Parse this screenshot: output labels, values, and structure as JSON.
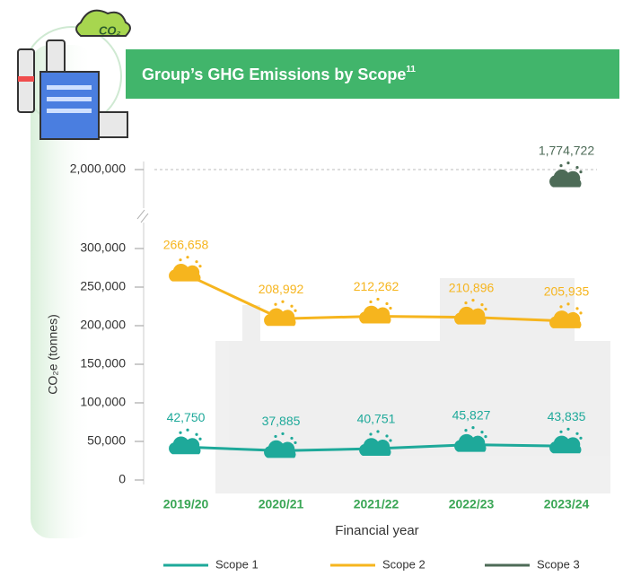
{
  "chart_data": {
    "type": "line",
    "title": "Group’s GHG Emissions by Scope",
    "title_note": "11",
    "y_label": "CO₂e (tonnes)",
    "x_label": "Financial year",
    "categories": [
      "2019/20",
      "2020/21",
      "2021/22",
      "2022/23",
      "2023/24"
    ],
    "series": [
      {
        "name": "Scope 1",
        "color": "#1ea99a",
        "values": [
          42750,
          37885,
          40751,
          45827,
          43835
        ],
        "value_labels": [
          "42,750",
          "37,885",
          "40,751",
          "45,827",
          "43,835"
        ]
      },
      {
        "name": "Scope 2",
        "color": "#f6b51e",
        "values": [
          266658,
          208992,
          212262,
          210896,
          205935
        ],
        "value_labels": [
          "266,658",
          "208,992",
          "212,262",
          "210,896",
          "205,935"
        ]
      },
      {
        "name": "Scope 3",
        "color": "#4d6b57",
        "values": [
          null,
          null,
          null,
          null,
          1774722
        ],
        "value_labels": [
          null,
          null,
          null,
          null,
          "1,774,722"
        ]
      }
    ],
    "ylim": [
      0,
      2000000
    ],
    "ybreak": 300000,
    "yticks": [
      0,
      {
        "value": 50000,
        "label": "50,000"
      },
      {
        "value": 100000,
        "label": "100,000"
      },
      {
        "value": 150000,
        "label": "150,000"
      },
      {
        "value": 200000,
        "label": "200,000"
      },
      {
        "value": 250000,
        "label": "250,000"
      },
      {
        "value": 300000,
        "label": "300,000"
      },
      {
        "value": 2000000,
        "label": "2,000,000"
      }
    ],
    "legend": "bottom"
  }
}
